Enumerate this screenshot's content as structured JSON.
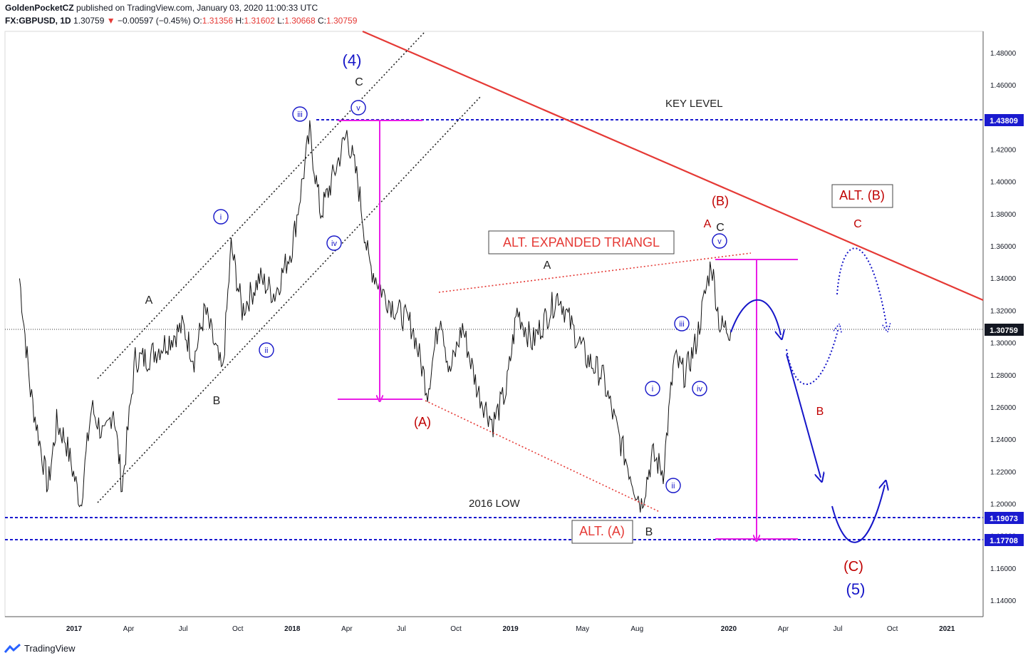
{
  "header": {
    "author": "GoldenPocketCZ",
    "published_text": "published on TradingView.com, January 03, 2020 11:00:33 UTC",
    "symbol": "FX:GBPUSD, 1D",
    "last": "1.30759",
    "change": "−0.00597 (−0.45%)",
    "o_label": "O:",
    "o": "1.31356",
    "h_label": "H:",
    "h": "1.31602",
    "l_label": "L:",
    "l": "1.30668",
    "c_label": "C:",
    "c": "1.30759"
  },
  "footer": {
    "brand": "TradingView"
  },
  "colors": {
    "wave_blue": "#1515c8",
    "wave_red": "#c00000",
    "magenta": "#e91ee6",
    "trend_red": "#e53935",
    "level_blue": "#1a1acf"
  },
  "chart_data": {
    "type": "line",
    "title": "",
    "xlabel": "",
    "ylabel": "",
    "ylim": [
      1.13,
      1.49
    ],
    "y_ticks": [
      "1.48000",
      "1.46000",
      "1.44000",
      "1.42000",
      "1.40000",
      "1.38000",
      "1.36000",
      "1.34000",
      "1.32000",
      "1.30000",
      "1.28000",
      "1.26000",
      "1.24000",
      "1.22000",
      "1.20000",
      "1.18000",
      "1.16000",
      "1.14000"
    ],
    "x_ticks": [
      "2017",
      "Apr",
      "Jul",
      "Oct",
      "2018",
      "Apr",
      "Jul",
      "Oct",
      "2019",
      "May",
      "Aug",
      "2020",
      "Apr",
      "Jul",
      "Oct",
      "2021"
    ],
    "price_labels": {
      "key": "1.43809",
      "current": "1.30759",
      "low_2016": "1.19073",
      "target": "1.17708"
    },
    "levels": [
      {
        "name": "key",
        "value": 1.43809,
        "label": "KEY LEVEL"
      },
      {
        "name": "low-2016",
        "value": 1.19073,
        "label": "2016 LOW"
      },
      {
        "name": "target",
        "value": 1.17708
      }
    ],
    "series": [
      {
        "x": [
          2016.75,
          2016.8,
          2016.88,
          2016.92,
          2016.96,
          2017.03,
          2017.08,
          2017.14,
          2017.18,
          2017.22,
          2017.28,
          2017.33,
          2017.42,
          2017.5,
          2017.55,
          2017.6,
          2017.68,
          2017.72,
          2017.77,
          2017.85,
          2017.92,
          2018.0,
          2018.08,
          2018.13,
          2018.18,
          2018.25,
          2018.3,
          2018.35,
          2018.42,
          2018.48,
          2018.55,
          2018.62,
          2018.68,
          2018.72,
          2018.78,
          2018.85,
          2018.92,
          2018.98,
          2019.03,
          2019.1,
          2019.18,
          2019.22,
          2019.28,
          2019.35,
          2019.42,
          2019.5,
          2019.57,
          2019.6,
          2019.65,
          2019.7,
          2019.75,
          2019.8,
          2019.85,
          2019.92,
          2019.96,
          2020.01
        ],
        "values": [
          1.34,
          1.27,
          1.21,
          1.25,
          1.24,
          1.2,
          1.26,
          1.24,
          1.26,
          1.21,
          1.29,
          1.29,
          1.3,
          1.31,
          1.29,
          1.32,
          1.28,
          1.36,
          1.32,
          1.34,
          1.33,
          1.36,
          1.43,
          1.38,
          1.4,
          1.43,
          1.4,
          1.35,
          1.33,
          1.32,
          1.31,
          1.27,
          1.32,
          1.28,
          1.31,
          1.27,
          1.25,
          1.27,
          1.32,
          1.3,
          1.32,
          1.33,
          1.31,
          1.29,
          1.28,
          1.24,
          1.21,
          1.2,
          1.23,
          1.22,
          1.29,
          1.28,
          1.3,
          1.35,
          1.31,
          1.308
        ]
      }
    ],
    "annotations": {
      "w4": "(4)",
      "w4c": "C",
      "w4v": "v",
      "w4iii": "iii",
      "w4iv": "iv",
      "w4i": "i",
      "w4ii": "ii",
      "w4A": "A",
      "w4B": "B",
      "bigA": "(A)",
      "midA": "A",
      "bigB": "(B)",
      "bA": "A",
      "bC": "C",
      "bv": "v",
      "altTri": "ALT. EXPANDED TRIANGL",
      "i2": "i",
      "ii2": "ii",
      "iii2": "iii",
      "iv2": "iv",
      "altA": "ALT. (A)",
      "lowB": "B",
      "altB": "ALT. (B)",
      "fC": "C",
      "fB": "B",
      "bigC": "(C)",
      "big5": "(5)"
    }
  }
}
